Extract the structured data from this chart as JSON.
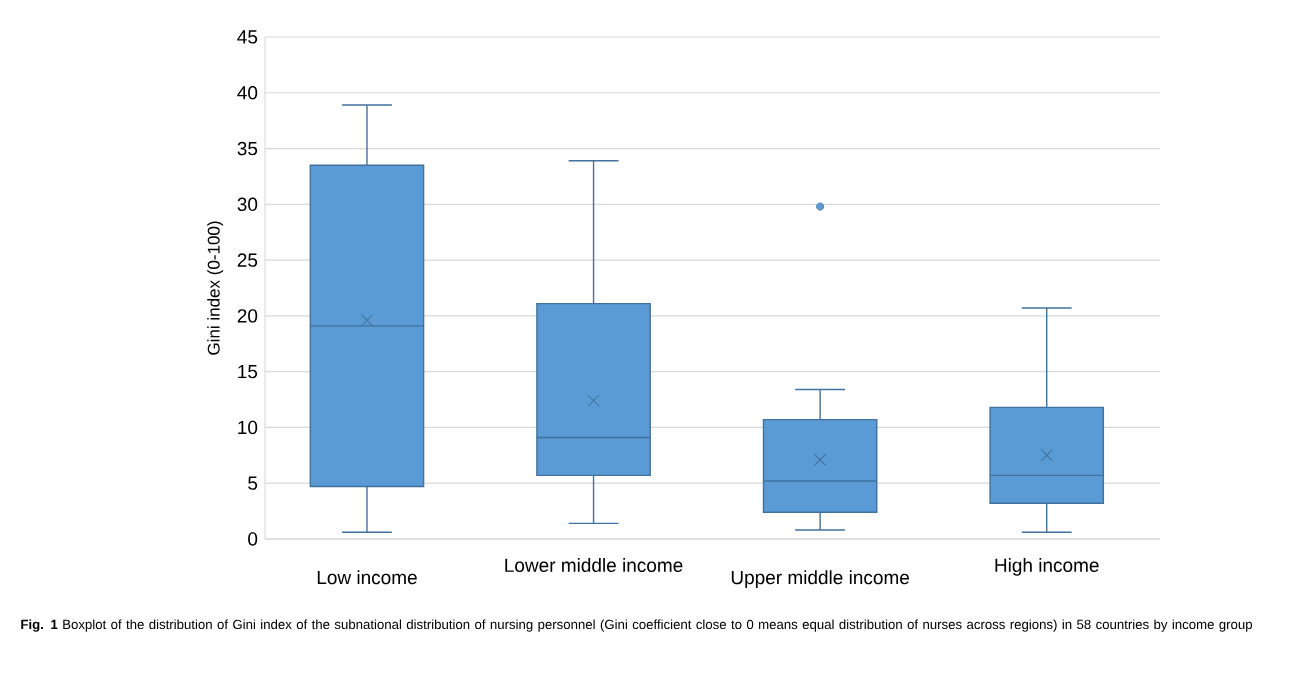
{
  "chart_data": {
    "type": "box",
    "ylabel": "Gini index (0-100)",
    "categories": [
      "Low income",
      "Lower middle income",
      "Upper middle income",
      "High income"
    ],
    "boxes": [
      {
        "low": 0.6,
        "q1": 4.7,
        "median": 19.1,
        "q3": 33.5,
        "high": 38.9,
        "mean": 19.6
      },
      {
        "low": 1.4,
        "q1": 5.7,
        "median": 9.1,
        "q3": 21.1,
        "high": 33.9,
        "mean": 12.4
      },
      {
        "low": 0.8,
        "q1": 2.4,
        "median": 5.2,
        "q3": 10.7,
        "high": 13.4,
        "mean": 7.1,
        "outliers": [
          29.8
        ]
      },
      {
        "low": 0.6,
        "q1": 3.2,
        "median": 5.7,
        "q3": 11.8,
        "high": 20.7,
        "mean": 7.5
      }
    ],
    "color": "#5b9bd5",
    "ylim": [
      0,
      45
    ],
    "yticks": [
      0,
      5,
      10,
      15,
      20,
      25,
      30,
      35,
      40,
      45
    ],
    "grid": "y",
    "annotations": [
      "**Fig. 1** Boxplot of the distribution of Gini index of the subnational distribution of nursing personnel (Gini coefficient close to 0 means equal distribution of nurses across regions) in 58 countries by income group"
    ]
  }
}
